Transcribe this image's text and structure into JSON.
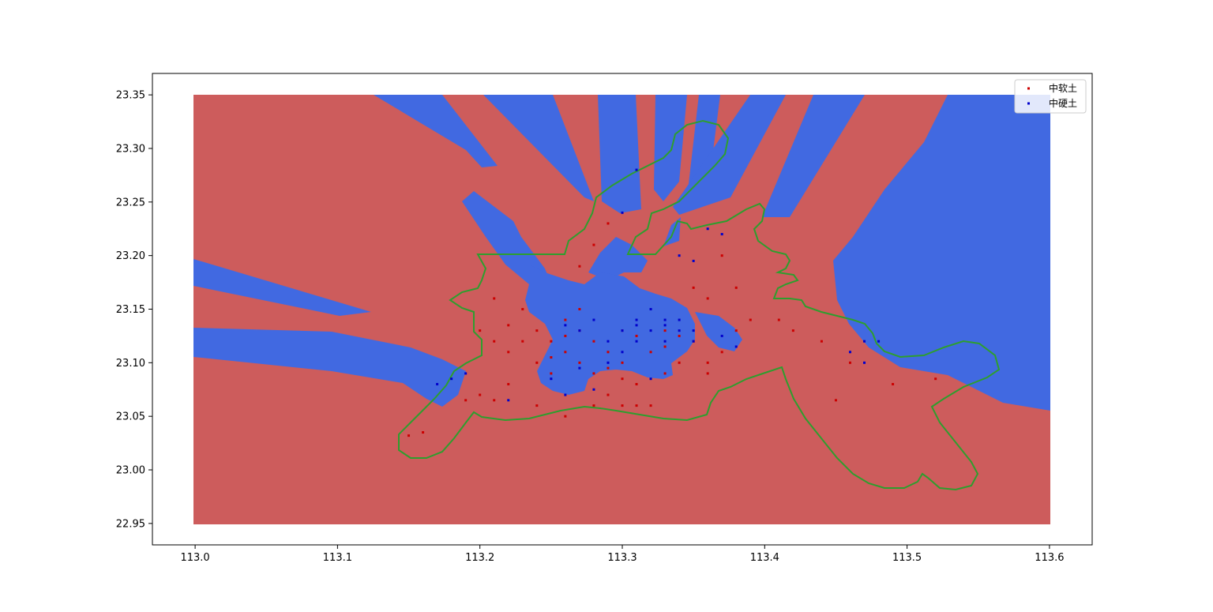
{
  "chart_data": {
    "type": "scatter",
    "title": "",
    "xlabel": "",
    "ylabel": "",
    "xlim": [
      112.97,
      113.63
    ],
    "ylim": [
      22.93,
      23.37
    ],
    "x_ticks": [
      "113.0",
      "113.1",
      "113.2",
      "113.3",
      "113.4",
      "113.5",
      "113.6"
    ],
    "y_ticks": [
      "22.95",
      "23.00",
      "23.05",
      "23.10",
      "23.15",
      "23.20",
      "23.25",
      "23.30",
      "23.35"
    ],
    "grid": false,
    "legend_position": "top-right",
    "series": [
      {
        "name": "中软土",
        "color": "#cc0000",
        "points": [
          [
            113.15,
            23.032
          ],
          [
            113.16,
            23.035
          ],
          [
            113.19,
            23.065
          ],
          [
            113.2,
            23.07
          ],
          [
            113.21,
            23.065
          ],
          [
            113.22,
            23.08
          ],
          [
            113.2,
            23.13
          ],
          [
            113.21,
            23.12
          ],
          [
            113.22,
            23.11
          ],
          [
            113.23,
            23.12
          ],
          [
            113.24,
            23.13
          ],
          [
            113.24,
            23.1
          ],
          [
            113.25,
            23.12
          ],
          [
            113.25,
            23.09
          ],
          [
            113.26,
            23.11
          ],
          [
            113.26,
            23.14
          ],
          [
            113.27,
            23.13
          ],
          [
            113.27,
            23.1
          ],
          [
            113.28,
            23.12
          ],
          [
            113.28,
            23.09
          ],
          [
            113.29,
            23.11
          ],
          [
            113.29,
            23.07
          ],
          [
            113.3,
            23.1
          ],
          [
            113.3,
            23.13
          ],
          [
            113.31,
            23.08
          ],
          [
            113.31,
            23.06
          ],
          [
            113.32,
            23.11
          ],
          [
            113.33,
            23.09
          ],
          [
            113.34,
            23.1
          ],
          [
            113.35,
            23.12
          ],
          [
            113.36,
            23.1
          ],
          [
            113.37,
            23.11
          ],
          [
            113.38,
            23.13
          ],
          [
            113.39,
            23.14
          ],
          [
            113.35,
            23.17
          ],
          [
            113.36,
            23.16
          ],
          [
            113.37,
            23.2
          ],
          [
            113.38,
            23.17
          ],
          [
            113.27,
            23.15
          ],
          [
            113.27,
            23.19
          ],
          [
            113.28,
            23.21
          ],
          [
            113.29,
            23.23
          ],
          [
            113.23,
            23.15
          ],
          [
            113.21,
            23.16
          ],
          [
            113.24,
            23.06
          ],
          [
            113.26,
            23.05
          ],
          [
            113.28,
            23.06
          ],
          [
            113.3,
            23.06
          ],
          [
            113.32,
            23.06
          ],
          [
            113.41,
            23.14
          ],
          [
            113.42,
            23.13
          ],
          [
            113.44,
            23.12
          ],
          [
            113.45,
            23.065
          ],
          [
            113.46,
            23.1
          ],
          [
            113.49,
            23.08
          ],
          [
            113.52,
            23.085
          ],
          [
            113.22,
            23.135
          ],
          [
            113.33,
            23.13
          ],
          [
            113.34,
            23.125
          ],
          [
            113.31,
            23.125
          ],
          [
            113.36,
            23.09
          ],
          [
            113.25,
            23.105
          ],
          [
            113.29,
            23.095
          ],
          [
            113.3,
            23.085
          ],
          [
            113.26,
            23.125
          ],
          [
            113.33,
            23.115
          ]
        ]
      },
      {
        "name": "中硬土",
        "color": "#0000cc",
        "points": [
          [
            113.17,
            23.08
          ],
          [
            113.18,
            23.085
          ],
          [
            113.19,
            23.09
          ],
          [
            113.22,
            23.065
          ],
          [
            113.25,
            23.085
          ],
          [
            113.26,
            23.07
          ],
          [
            113.27,
            23.13
          ],
          [
            113.28,
            23.14
          ],
          [
            113.29,
            23.12
          ],
          [
            113.3,
            23.13
          ],
          [
            113.31,
            23.14
          ],
          [
            113.31,
            23.12
          ],
          [
            113.32,
            23.15
          ],
          [
            113.32,
            23.13
          ],
          [
            113.33,
            23.14
          ],
          [
            113.33,
            23.12
          ],
          [
            113.34,
            23.13
          ],
          [
            113.34,
            23.14
          ],
          [
            113.35,
            23.13
          ],
          [
            113.35,
            23.12
          ],
          [
            113.3,
            23.11
          ],
          [
            113.29,
            23.1
          ],
          [
            113.27,
            23.095
          ],
          [
            113.28,
            23.075
          ],
          [
            113.32,
            23.085
          ],
          [
            113.3,
            23.24
          ],
          [
            113.31,
            23.28
          ],
          [
            113.36,
            23.225
          ],
          [
            113.37,
            23.22
          ],
          [
            113.35,
            23.195
          ],
          [
            113.34,
            23.2
          ],
          [
            113.46,
            23.11
          ],
          [
            113.47,
            23.12
          ],
          [
            113.47,
            23.1
          ],
          [
            113.48,
            23.12
          ],
          [
            113.38,
            23.115
          ],
          [
            113.37,
            23.125
          ],
          [
            113.26,
            23.135
          ],
          [
            113.31,
            23.135
          ],
          [
            113.33,
            23.135
          ]
        ]
      }
    ]
  },
  "legend": {
    "items": [
      {
        "label": "中软土"
      },
      {
        "label": "中硬土"
      }
    ]
  }
}
